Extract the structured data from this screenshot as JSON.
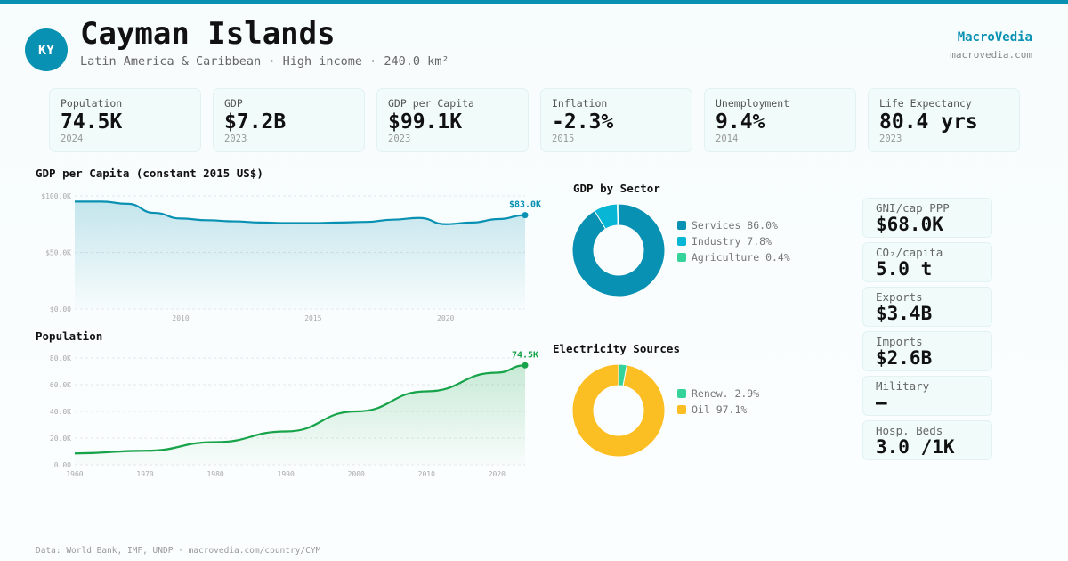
{
  "header": {
    "avatar": "KY",
    "title": "Cayman Islands",
    "subtitle": "Latin America & Caribbean · High income · 240.0 km²",
    "brand": "MacroVedia",
    "brand_url": "macrovedia.com"
  },
  "kpis": [
    {
      "label": "Population",
      "value": "74.5K",
      "year": "2024"
    },
    {
      "label": "GDP",
      "value": "$7.2B",
      "year": "2023"
    },
    {
      "label": "GDP per Capita",
      "value": "$99.1K",
      "year": "2023"
    },
    {
      "label": "Inflation",
      "value": "-2.3%",
      "year": "2015"
    },
    {
      "label": "Unemployment",
      "value": "9.4%",
      "year": "2014"
    },
    {
      "label": "Life Expectancy",
      "value": "80.4 yrs",
      "year": "2023"
    }
  ],
  "side_stats": [
    {
      "label": "GNI/cap PPP",
      "value": "$68.0K"
    },
    {
      "label": "CO₂/capita",
      "value": "5.0 t"
    },
    {
      "label": "Exports",
      "value": "$3.4B"
    },
    {
      "label": "Imports",
      "value": "$2.6B"
    },
    {
      "label": "Military",
      "value": "—"
    },
    {
      "label": "Hosp. Beds",
      "value": "3.0 /1K"
    }
  ],
  "colors": {
    "accent": "#0891b2",
    "green": "#16a34a",
    "services": "#0891b2",
    "industry": "#06b6d4",
    "agriculture": "#34d399",
    "renew": "#34d399",
    "oil": "#fbbf24"
  },
  "footer": "Data: World Bank, IMF, UNDP · macrovedia.com/country/CYM",
  "chart_data": [
    {
      "type": "area",
      "title": "GDP per Capita (constant 2015 US$)",
      "x": [
        2006,
        2007,
        2008,
        2009,
        2010,
        2011,
        2012,
        2013,
        2014,
        2015,
        2016,
        2017,
        2018,
        2019,
        2020,
        2021,
        2022,
        2023
      ],
      "values": [
        95000,
        95000,
        93000,
        85000,
        80000,
        78500,
        77500,
        76500,
        76000,
        76000,
        76500,
        77000,
        79000,
        80500,
        75000,
        76500,
        79500,
        83000
      ],
      "ylim": [
        0,
        100000
      ],
      "yticks": [
        "$0.00",
        "$50.0K",
        "$100.0K"
      ],
      "xticks": [
        "2010",
        "2015",
        "2020"
      ],
      "end_label": "$83.0K",
      "color": "#0891b2",
      "grid": true
    },
    {
      "type": "area",
      "title": "Population",
      "x": [
        1960,
        1970,
        1980,
        1990,
        2000,
        2010,
        2020,
        2024
      ],
      "values": [
        8500,
        10500,
        17000,
        25000,
        40000,
        55000,
        69000,
        74500
      ],
      "ylim": [
        0,
        80000
      ],
      "yticks": [
        "0.00",
        "20.0K",
        "40.0K",
        "60.0K",
        "80.0K"
      ],
      "xticks": [
        "1960",
        "1970",
        "1980",
        "1990",
        "2000",
        "2010",
        "2020"
      ],
      "end_label": "74.5K",
      "color": "#16a34a",
      "grid": true
    },
    {
      "type": "pie",
      "title": "GDP by Sector",
      "slices": [
        {
          "name": "Services",
          "value": 86.0,
          "label": "Services 86.0%",
          "color": "#0891b2"
        },
        {
          "name": "Industry",
          "value": 7.8,
          "label": "Industry 7.8%",
          "color": "#06b6d4"
        },
        {
          "name": "Agriculture",
          "value": 0.4,
          "label": "Agriculture 0.4%",
          "color": "#34d399"
        }
      ]
    },
    {
      "type": "pie",
      "title": "Electricity Sources",
      "slices": [
        {
          "name": "Renew.",
          "value": 2.9,
          "label": "Renew. 2.9%",
          "color": "#34d399"
        },
        {
          "name": "Oil",
          "value": 97.1,
          "label": "Oil 97.1%",
          "color": "#fbbf24"
        }
      ]
    }
  ]
}
